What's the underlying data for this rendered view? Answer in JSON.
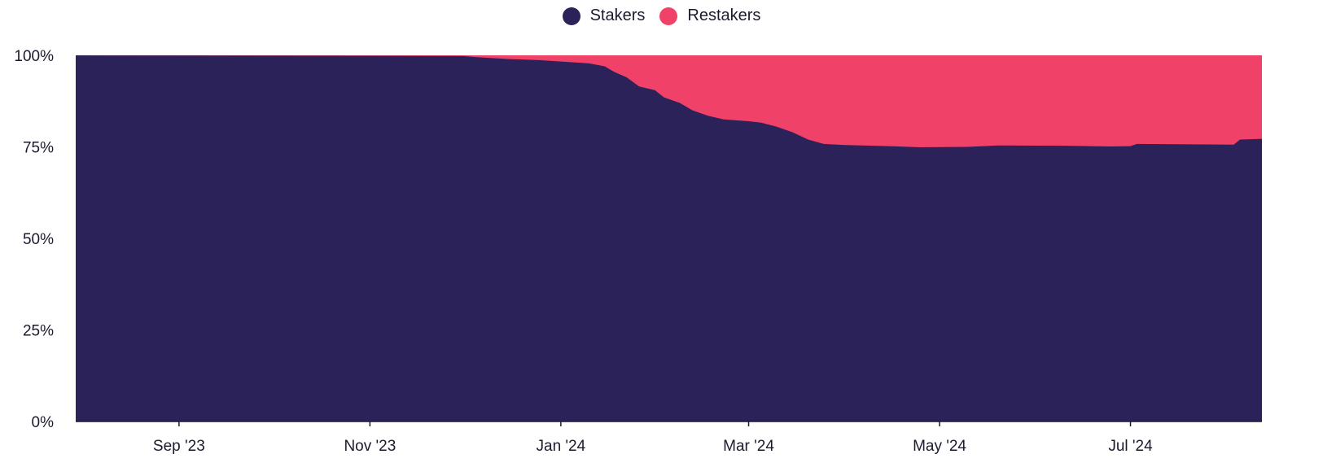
{
  "colors": {
    "stakers": "#2a2259",
    "restakers": "#f04168",
    "axis": "#1c1b2e"
  },
  "chart_data": {
    "type": "area",
    "stacked": true,
    "normalized": true,
    "title": "",
    "xlabel": "",
    "ylabel": "",
    "ylim": [
      0,
      100
    ],
    "xlim": [
      "2023-07-30",
      "2024-08-12"
    ],
    "grid": false,
    "legend_position": "top-center",
    "y_ticks": [
      "0%",
      "25%",
      "50%",
      "75%",
      "100%"
    ],
    "y_tick_values": [
      0,
      25,
      50,
      75,
      100
    ],
    "x_ticks": [
      {
        "label": "Sep '23",
        "date": "2023-09-01"
      },
      {
        "label": "Nov '23",
        "date": "2023-11-01"
      },
      {
        "label": "Jan '24",
        "date": "2024-01-01"
      },
      {
        "label": "Mar '24",
        "date": "2024-03-01"
      },
      {
        "label": "May '24",
        "date": "2024-05-01"
      },
      {
        "label": "Jul '24",
        "date": "2024-07-01"
      }
    ],
    "series": [
      {
        "name": "Stakers",
        "color": "#2a2259",
        "points": [
          {
            "x": "2023-07-30",
            "y": 100
          },
          {
            "x": "2023-12-01",
            "y": 99.8
          },
          {
            "x": "2023-12-05",
            "y": 99.5
          },
          {
            "x": "2023-12-15",
            "y": 99.0
          },
          {
            "x": "2023-12-25",
            "y": 98.7
          },
          {
            "x": "2024-01-01",
            "y": 98.3
          },
          {
            "x": "2024-01-10",
            "y": 97.8
          },
          {
            "x": "2024-01-15",
            "y": 97.0
          },
          {
            "x": "2024-01-18",
            "y": 95.5
          },
          {
            "x": "2024-01-22",
            "y": 94.0
          },
          {
            "x": "2024-01-26",
            "y": 91.5
          },
          {
            "x": "2024-01-31",
            "y": 90.5
          },
          {
            "x": "2024-02-03",
            "y": 88.5
          },
          {
            "x": "2024-02-08",
            "y": 87.0
          },
          {
            "x": "2024-02-12",
            "y": 85.0
          },
          {
            "x": "2024-02-17",
            "y": 83.5
          },
          {
            "x": "2024-02-22",
            "y": 82.5
          },
          {
            "x": "2024-03-01",
            "y": 82.0
          },
          {
            "x": "2024-03-05",
            "y": 81.6
          },
          {
            "x": "2024-03-10",
            "y": 80.5
          },
          {
            "x": "2024-03-15",
            "y": 79.0
          },
          {
            "x": "2024-03-20",
            "y": 77.0
          },
          {
            "x": "2024-03-25",
            "y": 75.8
          },
          {
            "x": "2024-04-01",
            "y": 75.5
          },
          {
            "x": "2024-04-15",
            "y": 75.2
          },
          {
            "x": "2024-04-25",
            "y": 74.9
          },
          {
            "x": "2024-05-10",
            "y": 75.0
          },
          {
            "x": "2024-05-20",
            "y": 75.4
          },
          {
            "x": "2024-06-10",
            "y": 75.3
          },
          {
            "x": "2024-06-25",
            "y": 75.1
          },
          {
            "x": "2024-07-01",
            "y": 75.2
          },
          {
            "x": "2024-07-03",
            "y": 75.8
          },
          {
            "x": "2024-07-20",
            "y": 75.7
          },
          {
            "x": "2024-08-03",
            "y": 75.6
          },
          {
            "x": "2024-08-05",
            "y": 77.0
          },
          {
            "x": "2024-08-12",
            "y": 77.2
          }
        ]
      },
      {
        "name": "Restakers",
        "color": "#f04168",
        "complement_of": "Stakers"
      }
    ]
  }
}
